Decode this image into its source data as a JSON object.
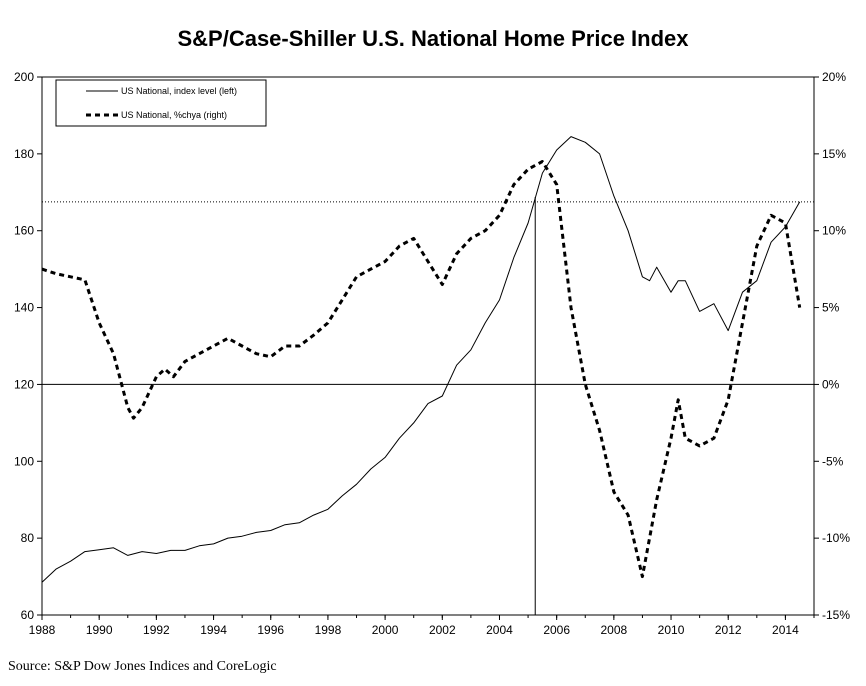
{
  "chart_data": {
    "type": "line",
    "title": "S&P/Case-Shiller U.S. National Home Price Index",
    "source": "Source: S&P Dow Jones Indices and CoreLogic",
    "xlim": [
      1988,
      2015
    ],
    "x_ticks": [
      1988,
      1990,
      1992,
      1994,
      1996,
      1998,
      2000,
      2002,
      2004,
      2006,
      2008,
      2010,
      2012,
      2014
    ],
    "y_left": {
      "ylim": [
        60,
        200
      ],
      "ticks": [
        60,
        80,
        100,
        120,
        140,
        160,
        180,
        200
      ],
      "tick_labels": [
        "60",
        "80",
        "100",
        "120",
        "140",
        "160",
        "180",
        "200"
      ]
    },
    "y_right": {
      "ylim": [
        -15,
        20
      ],
      "ticks": [
        -15,
        -10,
        -5,
        0,
        5,
        10,
        15,
        20
      ],
      "tick_labels": [
        "-15%",
        "-10%",
        "-5%",
        "0%",
        "5%",
        "10%",
        "15%",
        "20%"
      ]
    },
    "legend": {
      "placement": "top-left"
    },
    "reference_lines": {
      "horizontal_dotted_left_value": 167.5,
      "zero_line_right_value": 0,
      "vertical_line_x": 2005.25
    },
    "series": [
      {
        "name": "US National, index level (left)",
        "axis": "left",
        "style": "solid",
        "color": "#000000",
        "x": [
          1988.0,
          1988.5,
          1989.0,
          1989.5,
          1990.0,
          1990.5,
          1991.0,
          1991.5,
          1992.0,
          1992.5,
          1993.0,
          1993.5,
          1994.0,
          1994.5,
          1995.0,
          1995.5,
          1996.0,
          1996.5,
          1997.0,
          1997.5,
          1998.0,
          1998.5,
          1999.0,
          1999.5,
          2000.0,
          2000.5,
          2001.0,
          2001.5,
          2002.0,
          2002.5,
          2003.0,
          2003.5,
          2004.0,
          2004.5,
          2005.0,
          2005.5,
          2006.0,
          2006.5,
          2007.0,
          2007.5,
          2008.0,
          2008.5,
          2009.0,
          2009.25,
          2009.5,
          2010.0,
          2010.25,
          2010.5,
          2011.0,
          2011.5,
          2012.0,
          2012.5,
          2013.0,
          2013.5,
          2014.0,
          2014.5
        ],
        "values": [
          68.5,
          72,
          74,
          76.5,
          77,
          77.5,
          75.5,
          76.5,
          76,
          76.8,
          76.8,
          78,
          78.5,
          80,
          80.5,
          81.5,
          82,
          83.5,
          84,
          86,
          87.5,
          91,
          94,
          98,
          101,
          106,
          110,
          115,
          117,
          125,
          129,
          136,
          142,
          153,
          162,
          175,
          181,
          184.5,
          183,
          180,
          169,
          160,
          148,
          147,
          150.5,
          144,
          147,
          147,
          139,
          141,
          134,
          144,
          147,
          157,
          161,
          167.5
        ]
      },
      {
        "name": "US National, %chya (right)",
        "axis": "right",
        "style": "dashed",
        "color": "#000000",
        "x": [
          1988.0,
          1988.5,
          1989.0,
          1989.5,
          1990.0,
          1990.5,
          1991.0,
          1991.2,
          1991.5,
          1992.0,
          1992.3,
          1992.6,
          1993.0,
          1993.5,
          1994.0,
          1994.5,
          1995.0,
          1995.5,
          1996.0,
          1996.5,
          1997.0,
          1997.5,
          1998.0,
          1998.5,
          1999.0,
          1999.5,
          2000.0,
          2000.5,
          2001.0,
          2001.5,
          2002.0,
          2002.5,
          2003.0,
          2003.5,
          2004.0,
          2004.5,
          2005.0,
          2005.5,
          2006.0,
          2006.5,
          2007.0,
          2007.5,
          2008.0,
          2008.5,
          2009.0,
          2009.5,
          2010.0,
          2010.25,
          2010.5,
          2011.0,
          2011.5,
          2012.0,
          2012.5,
          2013.0,
          2013.5,
          2014.0,
          2014.5
        ],
        "values": [
          7.5,
          7.2,
          7.0,
          6.8,
          4.0,
          2.0,
          -1.5,
          -2.2,
          -1.5,
          0.5,
          1.0,
          0.5,
          1.5,
          2.0,
          2.5,
          3.0,
          2.5,
          2.0,
          1.8,
          2.5,
          2.5,
          3.2,
          4.0,
          5.5,
          7.0,
          7.5,
          8.0,
          9.0,
          9.5,
          8.0,
          6.5,
          8.5,
          9.5,
          10.0,
          11.0,
          13.0,
          14.0,
          14.5,
          13.0,
          5.0,
          0.0,
          -3.0,
          -7.0,
          -8.5,
          -12.5,
          -7.5,
          -3.5,
          -1.0,
          -3.5,
          -4.0,
          -3.5,
          -1.0,
          4.0,
          9.0,
          11.0,
          10.5,
          5.0
        ]
      }
    ]
  }
}
